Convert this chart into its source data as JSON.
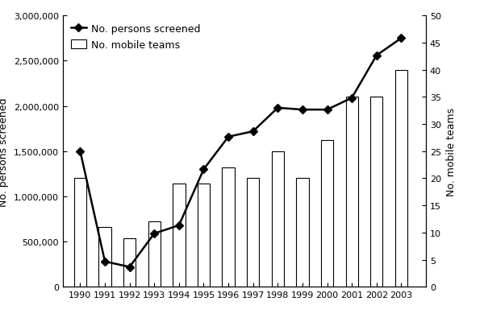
{
  "years": [
    1990,
    1991,
    1992,
    1993,
    1994,
    1995,
    1996,
    1997,
    1998,
    1999,
    2000,
    2001,
    2002,
    2003
  ],
  "persons_screened": [
    1500000,
    280000,
    220000,
    590000,
    680000,
    1300000,
    1660000,
    1720000,
    1980000,
    1960000,
    1960000,
    2090000,
    2560000,
    2750000
  ],
  "mobile_teams": [
    20,
    11,
    9,
    12,
    19,
    19,
    22,
    20,
    25,
    20,
    27,
    35,
    35,
    40
  ],
  "left_ylim": [
    0,
    3000000
  ],
  "right_ylim": [
    0,
    50
  ],
  "left_yticks": [
    0,
    500000,
    1000000,
    1500000,
    2000000,
    2500000,
    3000000
  ],
  "right_yticks": [
    0,
    5,
    10,
    15,
    20,
    25,
    30,
    35,
    40,
    45,
    50
  ],
  "left_ylabel": "No. persons screened",
  "right_ylabel": "No. mobile teams",
  "line_label": "No. persons screened",
  "bar_label": "No. mobile teams",
  "bar_color": "white",
  "bar_edgecolor": "black",
  "line_color": "black",
  "marker": "D",
  "markersize": 5,
  "linewidth": 1.8,
  "bar_width": 0.5,
  "figsize": [
    6.0,
    4.06
  ],
  "dpi": 100,
  "xlim_left": 1989.3,
  "xlim_right": 2004.0,
  "ylabel_fontsize": 9,
  "tick_labelsize": 8,
  "legend_fontsize": 9
}
